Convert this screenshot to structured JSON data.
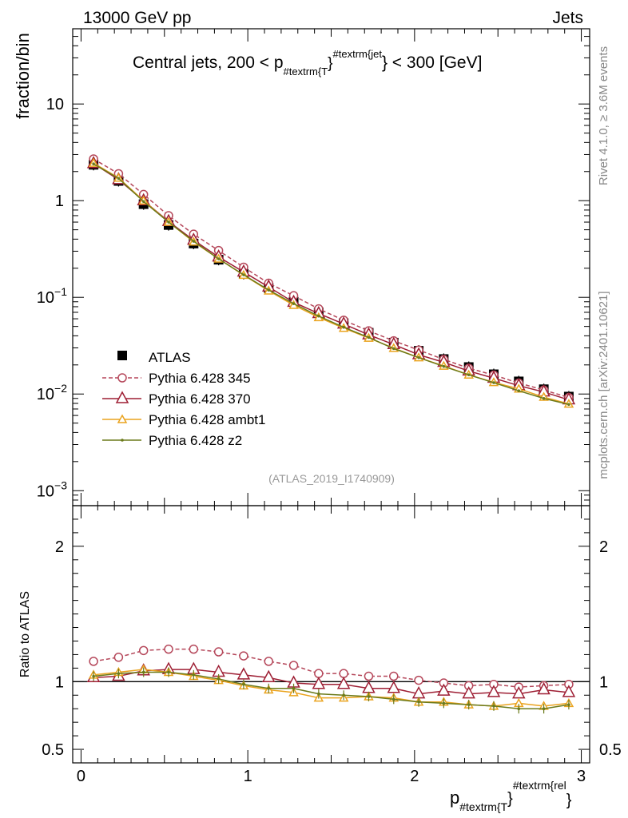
{
  "header": {
    "left": "13000 GeV pp",
    "right": "Jets"
  },
  "side_labels": {
    "rivet": "Rivet 4.1.0, ≥ 3.6M events",
    "mcplots": "mcplots.cern.ch [arXiv:2401.10621]"
  },
  "colors": {
    "atlas": "#000000",
    "p345": "#b5475a",
    "p370": "#9e1f34",
    "ambt1": "#eaa31e",
    "z2": "#6b7a1a"
  },
  "chart_data": [
    {
      "type": "line",
      "panel": "main",
      "title_prefix": "Central jets, 200 < p",
      "title_sub": "#textrm{T",
      "title_brace": "}",
      "title_sup": "#textrm{jet",
      "title_suffix": "} < 300 [GeV]",
      "ylabel": "fraction/bin",
      "yscale": "log",
      "ylim": [
        0.0007,
        60
      ],
      "xlim": [
        -0.05,
        3.05
      ],
      "y_ticks": [
        {
          "value": 10,
          "label": "10"
        },
        {
          "value": 1,
          "label": "1"
        },
        {
          "value": 0.1,
          "label": "10",
          "exp": "−1"
        },
        {
          "value": 0.01,
          "label": "10",
          "exp": "−2"
        },
        {
          "value": 0.001,
          "label": "10",
          "exp": "−3"
        }
      ],
      "watermark": "(ATLAS_2019_I1740909)",
      "x": [
        0.075,
        0.225,
        0.375,
        0.525,
        0.675,
        0.825,
        0.975,
        1.125,
        1.275,
        1.425,
        1.575,
        1.725,
        1.875,
        2.025,
        2.175,
        2.325,
        2.475,
        2.625,
        2.775,
        2.925
      ],
      "series": [
        {
          "key": "atlas",
          "name": "ATLAS",
          "style": "data",
          "values": [
            2.35,
            1.6,
            0.92,
            0.56,
            0.36,
            0.245,
            0.175,
            0.125,
            0.09,
            0.07,
            0.054,
            0.043,
            0.034,
            0.028,
            0.023,
            0.019,
            0.016,
            0.0135,
            0.0112,
            0.0094
          ]
        },
        {
          "key": "p345",
          "name": "Pythia 6.428 345",
          "style": "dashed-circle",
          "values": [
            2.7,
            1.9,
            1.16,
            0.7,
            0.45,
            0.305,
            0.205,
            0.14,
            0.104,
            0.076,
            0.058,
            0.045,
            0.0355,
            0.0285,
            0.0228,
            0.0185,
            0.0157,
            0.013,
            0.011,
            0.0092
          ]
        },
        {
          "key": "p370",
          "name": "Pythia 6.428 370",
          "style": "triangle",
          "values": [
            2.42,
            1.65,
            1.0,
            0.61,
            0.39,
            0.262,
            0.183,
            0.128,
            0.089,
            0.068,
            0.053,
            0.041,
            0.0325,
            0.0255,
            0.0213,
            0.0173,
            0.0146,
            0.0122,
            0.0105,
            0.0087
          ]
        },
        {
          "key": "ambt1",
          "name": "Pythia 6.428 ambt1",
          "style": "triangle-small",
          "values": [
            2.45,
            1.72,
            1.0,
            0.6,
            0.375,
            0.25,
            0.17,
            0.117,
            0.083,
            0.062,
            0.048,
            0.038,
            0.0298,
            0.0238,
            0.0195,
            0.0158,
            0.0132,
            0.0113,
            0.0093,
            0.0079
          ]
        },
        {
          "key": "z2",
          "name": "Pythia 6.428 z2",
          "style": "point",
          "values": [
            2.4,
            1.7,
            0.98,
            0.6,
            0.38,
            0.25,
            0.171,
            0.119,
            0.086,
            0.064,
            0.049,
            0.0385,
            0.0295,
            0.0238,
            0.0193,
            0.0158,
            0.0131,
            0.0108,
            0.009,
            0.0078
          ]
        }
      ]
    },
    {
      "type": "line",
      "panel": "ratio",
      "ylabel": "Ratio to ATLAS",
      "xlabel_main": "p",
      "xlabel_sub": "#textrm{T",
      "xlabel_brace": "}",
      "xlabel_sup": "#textrm{rel",
      "xlabel_tail": "}",
      "ylim": [
        0.4,
        2.3
      ],
      "xlim": [
        -0.05,
        3.05
      ],
      "y_ticks": [
        {
          "value": 2,
          "label": "2"
        },
        {
          "value": 1,
          "label": "1"
        },
        {
          "value": 0.5,
          "label": "0.5"
        }
      ],
      "x_ticks": [
        {
          "value": 0,
          "label": "0"
        },
        {
          "value": 1,
          "label": "1"
        },
        {
          "value": 2,
          "label": "2"
        },
        {
          "value": 3,
          "label": "3"
        }
      ],
      "x": [
        0.075,
        0.225,
        0.375,
        0.525,
        0.675,
        0.825,
        0.975,
        1.125,
        1.275,
        1.425,
        1.575,
        1.725,
        1.875,
        2.025,
        2.175,
        2.325,
        2.475,
        2.625,
        2.775,
        2.925
      ],
      "series": [
        {
          "key": "p345",
          "style": "dashed-circle",
          "values": [
            1.15,
            1.18,
            1.23,
            1.24,
            1.24,
            1.22,
            1.19,
            1.15,
            1.12,
            1.06,
            1.06,
            1.04,
            1.04,
            1.01,
            0.99,
            0.97,
            0.98,
            0.96,
            0.97,
            0.98
          ]
        },
        {
          "key": "p370",
          "style": "triangle",
          "values": [
            1.03,
            1.04,
            1.08,
            1.09,
            1.09,
            1.07,
            1.05,
            1.03,
            0.99,
            0.98,
            0.98,
            0.95,
            0.95,
            0.91,
            0.93,
            0.91,
            0.92,
            0.91,
            0.94,
            0.92
          ]
        },
        {
          "key": "ambt1",
          "style": "triangle-small",
          "values": [
            1.05,
            1.07,
            1.09,
            1.07,
            1.04,
            1.01,
            0.97,
            0.94,
            0.92,
            0.88,
            0.88,
            0.89,
            0.88,
            0.85,
            0.85,
            0.83,
            0.82,
            0.84,
            0.82,
            0.84
          ]
        },
        {
          "key": "z2",
          "style": "point",
          "values": [
            1.04,
            1.06,
            1.07,
            1.07,
            1.05,
            1.02,
            0.98,
            0.95,
            0.95,
            0.91,
            0.9,
            0.89,
            0.87,
            0.85,
            0.84,
            0.83,
            0.82,
            0.8,
            0.8,
            0.83
          ]
        }
      ]
    }
  ]
}
